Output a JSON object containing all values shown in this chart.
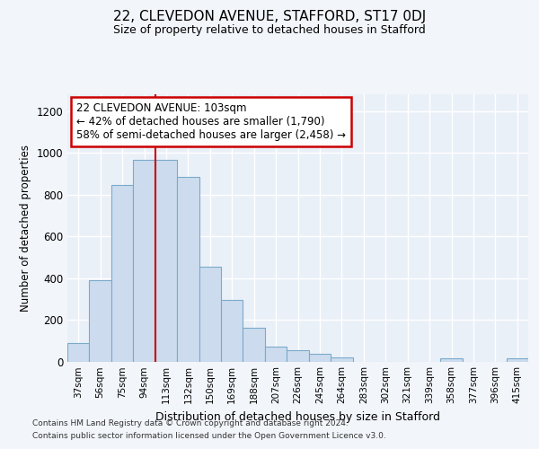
{
  "title": "22, CLEVEDON AVENUE, STAFFORD, ST17 0DJ",
  "subtitle": "Size of property relative to detached houses in Stafford",
  "xlabel": "Distribution of detached houses by size in Stafford",
  "ylabel": "Number of detached properties",
  "categories": [
    "37sqm",
    "56sqm",
    "75sqm",
    "94sqm",
    "113sqm",
    "132sqm",
    "150sqm",
    "169sqm",
    "188sqm",
    "207sqm",
    "226sqm",
    "245sqm",
    "264sqm",
    "283sqm",
    "302sqm",
    "321sqm",
    "339sqm",
    "358sqm",
    "377sqm",
    "396sqm",
    "415sqm"
  ],
  "values": [
    90,
    390,
    845,
    965,
    965,
    885,
    455,
    295,
    160,
    70,
    55,
    35,
    20,
    0,
    0,
    0,
    0,
    15,
    0,
    0,
    15
  ],
  "bar_color": "#ccdcee",
  "bar_edge_color": "#7aaaca",
  "vline_index": 3.5,
  "vline_color": "#cc0000",
  "annotation_text": "22 CLEVEDON AVENUE: 103sqm\n← 42% of detached houses are smaller (1,790)\n58% of semi-detached houses are larger (2,458) →",
  "ylim": [
    0,
    1280
  ],
  "yticks": [
    0,
    200,
    400,
    600,
    800,
    1000,
    1200
  ],
  "footer1": "Contains HM Land Registry data © Crown copyright and database right 2024.",
  "footer2": "Contains public sector information licensed under the Open Government Licence v3.0.",
  "bg_color": "#f2f5fa",
  "plot_bg_color": "#eaf0f8",
  "grid_color": "#ffffff"
}
